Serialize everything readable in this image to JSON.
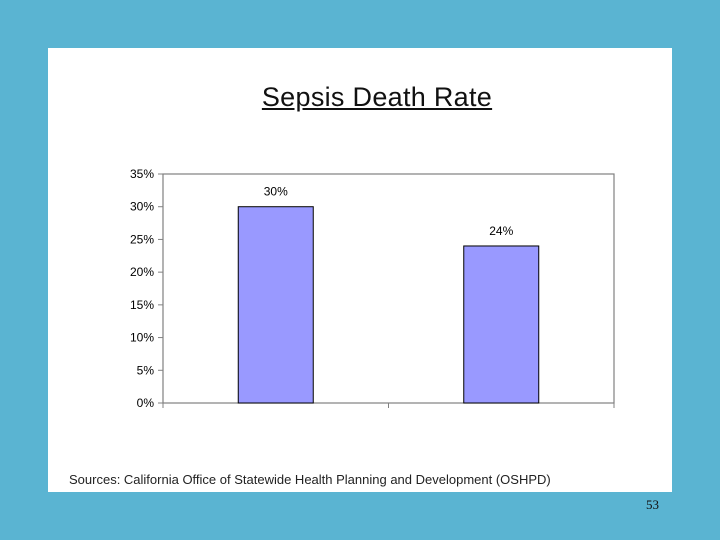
{
  "slide": {
    "sources": "Sources: California Office of Statewide Health Planning and Development (OSHPD)",
    "page_number": "53"
  },
  "colors": {
    "background": "#5ab4d2",
    "bar_fill": "#9999ff",
    "bar_stroke": "#000000",
    "plot_border": "#808080"
  },
  "chart_data": {
    "type": "bar",
    "title": "Sepsis Death Rate",
    "categories": [
      "",
      ""
    ],
    "values": [
      30,
      24
    ],
    "value_labels": [
      "30%",
      "24%"
    ],
    "ylim": [
      0,
      35
    ],
    "y_ticks": [
      0,
      5,
      10,
      15,
      20,
      25,
      30,
      35
    ],
    "y_tick_labels": [
      "0%",
      "5%",
      "10%",
      "15%",
      "20%",
      "25%",
      "30%",
      "35%"
    ],
    "grid": false,
    "legend": "none",
    "xlabel": "",
    "ylabel": ""
  }
}
